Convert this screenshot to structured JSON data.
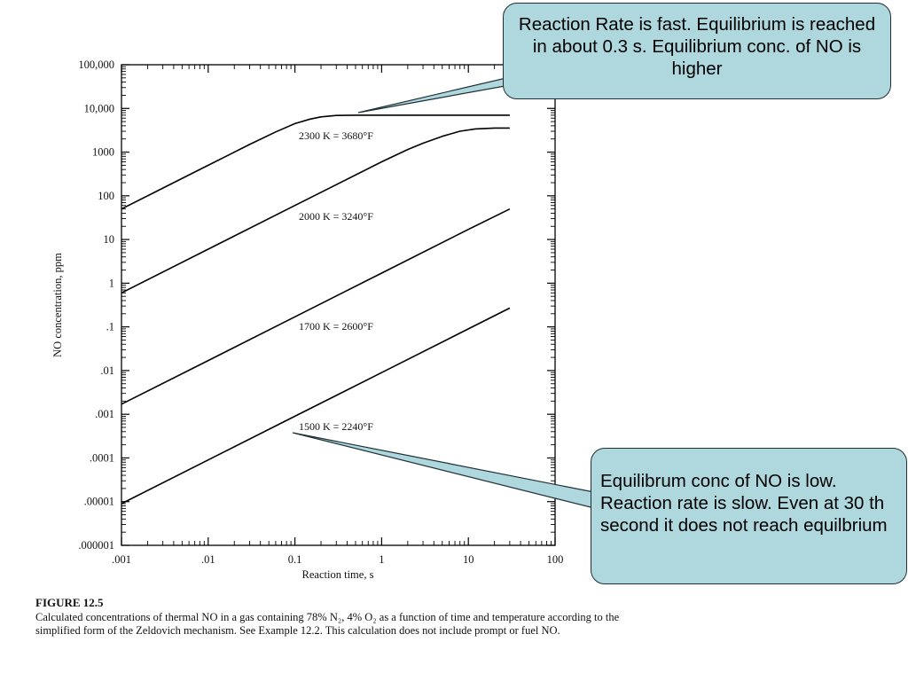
{
  "chart_data": {
    "type": "line",
    "xscale": "log",
    "yscale": "log",
    "xlim": [
      0.001,
      100
    ],
    "ylim": [
      1e-06,
      100000
    ],
    "xlabel": "Reaction time, s",
    "ylabel": "NO concentration, ppm",
    "xtick_labels": [
      ".001",
      ".01",
      "0.1",
      "1",
      "10",
      "100"
    ],
    "ytick_labels": [
      "100,000",
      "10,000",
      "1000",
      "100",
      "10",
      "1",
      ".1",
      ".01",
      ".001",
      ".0001",
      ".00001",
      ".000001"
    ],
    "series": [
      {
        "name": "2300 K = 3680°F",
        "x": [
          0.001,
          0.003,
          0.01,
          0.03,
          0.06,
          0.1,
          0.15,
          0.2,
          0.3,
          0.5,
          1,
          3,
          10,
          30
        ],
        "y": [
          50,
          150,
          500,
          1500,
          2900,
          4500,
          5700,
          6400,
          6900,
          7000,
          7000,
          7000,
          7000,
          7000
        ]
      },
      {
        "name": "2000 K = 3240°F",
        "x": [
          0.001,
          0.01,
          0.1,
          1,
          2,
          3,
          5,
          8,
          12,
          20,
          30
        ],
        "y": [
          0.6,
          6,
          60,
          600,
          1150,
          1600,
          2300,
          3000,
          3400,
          3550,
          3550
        ]
      },
      {
        "name": "1700 K = 2600°F",
        "x": [
          0.001,
          0.01,
          0.1,
          1,
          10,
          30
        ],
        "y": [
          0.0017,
          0.017,
          0.17,
          1.7,
          17,
          50
        ]
      },
      {
        "name": "1500 K = 2240°F",
        "x": [
          0.001,
          0.01,
          0.1,
          1,
          10,
          30
        ],
        "y": [
          9e-06,
          9e-05,
          0.0009,
          0.009,
          0.09,
          0.27
        ]
      }
    ]
  },
  "callouts": {
    "top": "Reaction Rate is fast. Equilibrium is reached in about 0.3 s. Equilibrium conc. of NO is higher",
    "bottom": "Equilibrum conc of NO is low. Reaction rate is slow. Even at 30 th second it does not reach equilbrium"
  },
  "caption": {
    "title": "FIGURE 12.5",
    "text": "Calculated concentrations of thermal NO in a gas containing 78% N₂, 4% O₂ as a function of time and temperature according to the simplified form of the Zeldovich mechanism. See Example 12.2. This calculation does not include prompt or fuel NO."
  },
  "colors": {
    "callout_fill": "#aed8de",
    "line": "#000000"
  }
}
